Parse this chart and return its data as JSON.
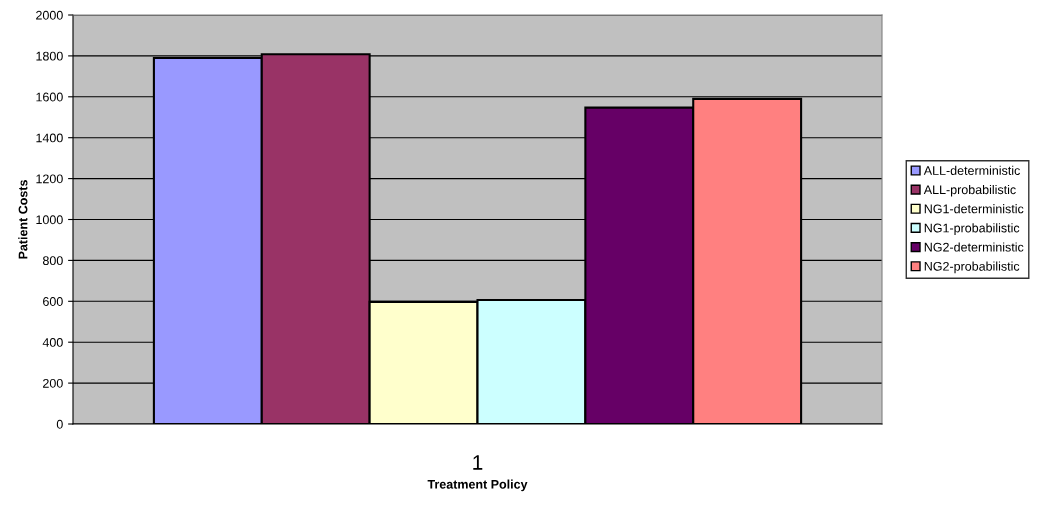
{
  "chart_data": {
    "type": "bar",
    "xlabel": "Treatment Policy",
    "ylabel": "Patient Costs",
    "categories": [
      "1"
    ],
    "series": [
      {
        "name": "ALL-deterministic",
        "color": "#9999ff",
        "values": [
          1790
        ]
      },
      {
        "name": "ALL-probabilistic",
        "color": "#993366",
        "values": [
          1808
        ]
      },
      {
        "name": "NG1-deterministic",
        "color": "#ffffcc",
        "values": [
          597
        ]
      },
      {
        "name": "NG1-probabilistic",
        "color": "#ccffff",
        "values": [
          606
        ]
      },
      {
        "name": "NG2-deterministic",
        "color": "#660066",
        "values": [
          1547
        ]
      },
      {
        "name": "NG2-probabilistic",
        "color": "#ff8080",
        "values": [
          1590
        ]
      }
    ],
    "ylim": [
      0,
      2000
    ],
    "yticks": [
      0,
      200,
      400,
      600,
      800,
      1000,
      1200,
      1400,
      1600,
      1800,
      2000
    ],
    "grid": "y",
    "legend": "right"
  }
}
